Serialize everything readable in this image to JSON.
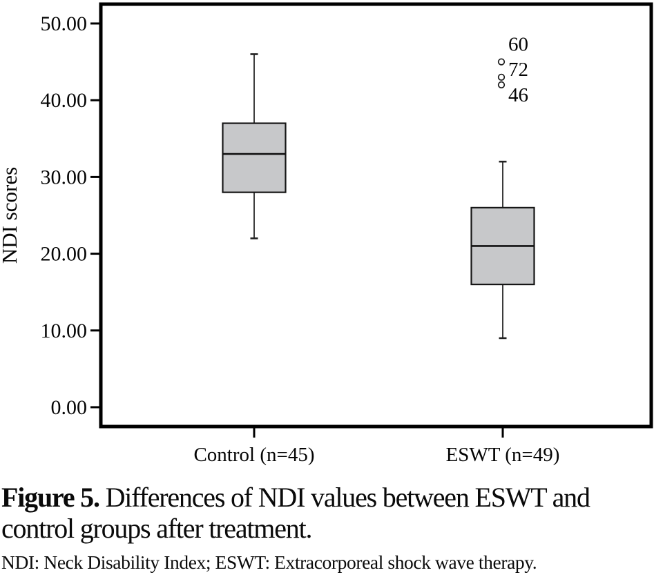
{
  "figure": {
    "caption_prefix": "Figure 5.",
    "caption_line1_rest": " Differences of NDI values between ESWT and",
    "caption_line2": "control groups after treatment.",
    "footnote": "NDI: Neck Disability Index; ESWT: Extracorporeal shock wave therapy."
  },
  "chart_data": {
    "type": "boxplot",
    "title": "",
    "xlabel": "",
    "ylabel": "NDI scores",
    "ylim": [
      0,
      50
    ],
    "grid": false,
    "legend": "none",
    "box_fill_color": "#c7c8ca",
    "box_edge_color": "#161616",
    "whisker_color": "#3c3c3c",
    "yticks": [
      {
        "value": 0,
        "label": "0.00"
      },
      {
        "value": 10,
        "label": "10.00"
      },
      {
        "value": 20,
        "label": "20.00"
      },
      {
        "value": 30,
        "label": "30.00"
      },
      {
        "value": 40,
        "label": "40.00"
      },
      {
        "value": 50,
        "label": "50.00"
      }
    ],
    "categories": [
      "Control (n=45)",
      "ESWT (n=49)"
    ],
    "series": [
      {
        "name": "Control (n=45)",
        "whisker_low": 22,
        "q1": 28,
        "median": 33,
        "q3": 37,
        "whisker_high": 46,
        "outliers": []
      },
      {
        "name": "ESWT (n=49)",
        "whisker_low": 9,
        "q1": 16,
        "median": 21,
        "q3": 26,
        "whisker_high": 32,
        "outliers": [
          {
            "value": 45,
            "label": "60",
            "label_dy": -16
          },
          {
            "value": 43,
            "label": "72",
            "label_dy": -2
          },
          {
            "value": 42,
            "label": "46",
            "label_dy": 24
          }
        ]
      }
    ]
  }
}
